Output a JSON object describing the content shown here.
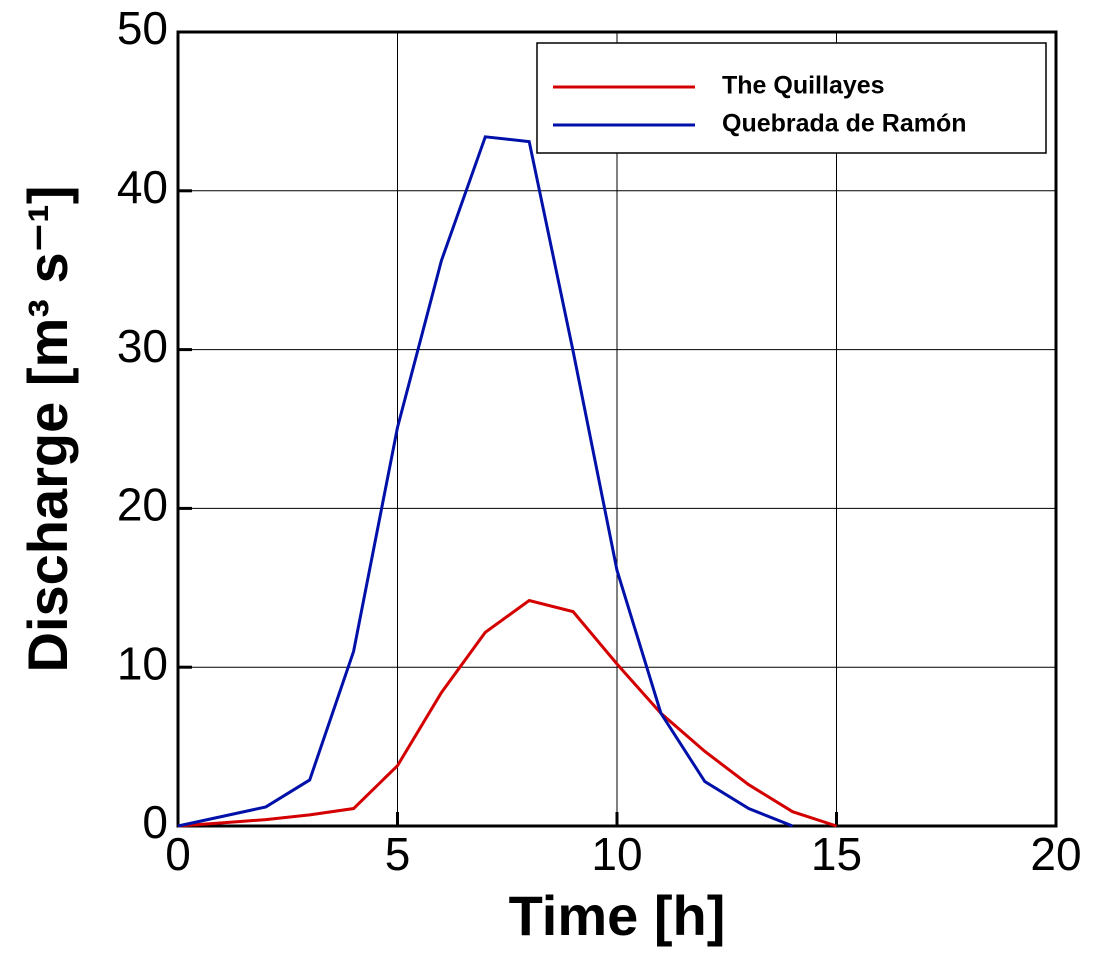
{
  "chart_data": {
    "type": "line",
    "x_label": "Time [h]",
    "y_label": "Discharge [m³ s⁻¹]",
    "x": [
      0,
      1,
      2,
      3,
      4,
      5,
      6,
      7,
      8,
      9,
      10,
      11,
      12,
      13,
      14,
      15
    ],
    "series": [
      {
        "name": "The Quillayes",
        "color": "#d40000",
        "values": [
          0,
          0.2,
          0.4,
          0.7,
          1.1,
          3.8,
          8.4,
          12.2,
          14.2,
          13.5,
          10.2,
          7.1,
          4.7,
          2.6,
          0.9,
          0
        ]
      },
      {
        "name": "Quebrada de Ramón",
        "color": "#0010a8",
        "values": [
          0,
          0.6,
          1.2,
          2.9,
          11,
          25.1,
          35.6,
          43.4,
          43.1,
          29.9,
          16.1,
          7.1,
          2.8,
          1.1,
          0,
          null
        ]
      }
    ],
    "xlim": [
      0,
      20
    ],
    "xticks": [
      0,
      5,
      10,
      15,
      20
    ],
    "ylim": [
      0,
      50
    ],
    "yticks": [
      0,
      10,
      20,
      30,
      40,
      50
    ],
    "grid": true,
    "legend": "upper right"
  }
}
